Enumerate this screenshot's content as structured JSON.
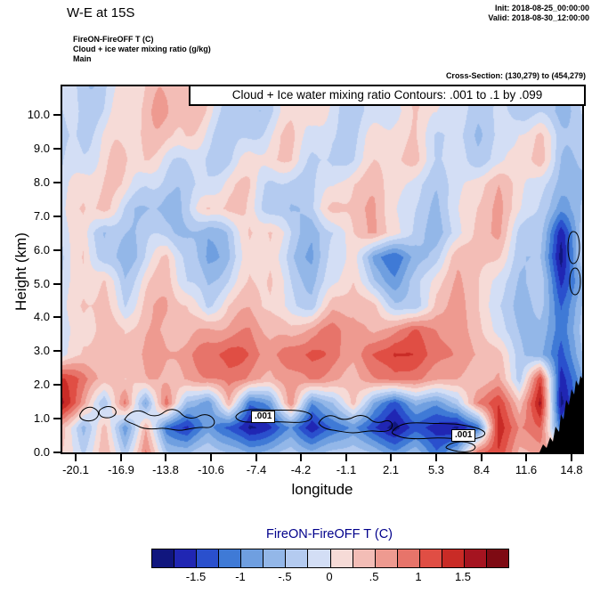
{
  "header": {
    "title": "W-E at 15S",
    "init_label": "Init: 2018-08-25_00:00:00",
    "valid_label": "Valid: 2018-08-30_12:00:00",
    "field_line1": "FireON-FireOFF T   (C)",
    "field_line2": "Cloud + ice water mixing ratio   (g/kg)",
    "field_line3": "Main",
    "cross_section": "Cross-Section: (130,279) to (454,279)"
  },
  "chart_data": {
    "type": "heatmap",
    "title": "W-E at 15S",
    "banner": "Cloud + Ice water mixing ratio Contours: .001 to .1 by .099",
    "xlabel": "longitude",
    "ylabel": "Height (km)",
    "x_ticks": [
      "-20.1",
      "-16.9",
      "-13.8",
      "-10.6",
      "-7.4",
      "-4.2",
      "-1.1",
      "2.1",
      "5.3",
      "8.4",
      "11.6",
      "14.8"
    ],
    "y_ticks": [
      "0.0",
      "1.0",
      "2.0",
      "3.0",
      "4.0",
      "5.0",
      "6.0",
      "7.0",
      "8.0",
      "9.0",
      "10.0"
    ],
    "y_range_km": [
      0,
      10.85
    ],
    "x_range_lon": [
      -20.1,
      14.8
    ],
    "contour_labels": [
      ".001",
      ".001"
    ],
    "grid": {
      "cols_lon": [
        -20.1,
        -18.7,
        -17.3,
        -15.9,
        -14.5,
        -13.1,
        -11.7,
        -10.3,
        -8.9,
        -7.5,
        -6.1,
        -4.7,
        -3.3,
        -1.9,
        -0.5,
        0.9,
        2.3,
        3.7,
        5.1,
        6.5,
        7.9,
        9.3,
        10.7,
        12.1,
        13.5,
        14.8
      ],
      "rows_km": [
        10.8,
        10.1,
        9.4,
        8.6,
        7.9,
        7.2,
        6.5,
        5.8,
        5.0,
        4.3,
        3.6,
        2.9,
        2.2,
        1.4,
        0.7,
        0.0
      ],
      "values": [
        [
          -0.3,
          -0.4,
          -0.3,
          0.2,
          0.3,
          0.4,
          0.4,
          0.2,
          -0.2,
          -0.3,
          -0.2,
          0.2,
          0.3,
          -0.2,
          -0.3,
          -0.2,
          0.2,
          0.3,
          0.2,
          -0.2,
          -0.3,
          -0.4,
          -0.3,
          -0.2,
          -0.4,
          -0.3
        ],
        [
          -0.4,
          -0.3,
          -0.2,
          0.3,
          0.4,
          0.5,
          0.3,
          0.1,
          -0.3,
          -0.4,
          -0.2,
          0.1,
          0.2,
          -0.3,
          -0.4,
          -0.2,
          0.1,
          0.2,
          0.1,
          -0.3,
          -0.4,
          -0.3,
          -0.2,
          -0.3,
          -0.5,
          -0.4
        ],
        [
          -0.5,
          -0.3,
          0.1,
          0.3,
          0.4,
          0.3,
          0.2,
          -0.2,
          -0.4,
          -0.3,
          0.1,
          0.3,
          -0.1,
          -0.4,
          -0.3,
          0.1,
          0.3,
          0.2,
          -0.2,
          -0.4,
          -0.5,
          -0.3,
          0.2,
          0.3,
          -0.3,
          -0.5
        ],
        [
          -0.4,
          -0.2,
          0.2,
          0.4,
          0.3,
          -0.2,
          -0.3,
          -0.4,
          -0.3,
          0.2,
          0.3,
          0.2,
          -0.3,
          -0.5,
          -0.2,
          0.2,
          0.4,
          0.3,
          -0.2,
          -0.3,
          -0.4,
          -0.2,
          0.3,
          0.4,
          -0.4,
          -0.6
        ],
        [
          -0.3,
          0.2,
          0.3,
          0.3,
          -0.2,
          -0.4,
          -0.5,
          -0.3,
          0.2,
          0.3,
          -0.2,
          -0.4,
          -0.3,
          -0.2,
          0.3,
          0.4,
          0.3,
          -0.2,
          -0.4,
          -0.3,
          0.2,
          0.4,
          0.3,
          -0.2,
          -0.5,
          -0.7
        ],
        [
          -0.2,
          0.3,
          0.4,
          -0.2,
          -0.5,
          -0.7,
          -0.4,
          0.2,
          0.4,
          0.2,
          -0.3,
          -0.6,
          -0.3,
          0.2,
          0.4,
          0.5,
          0.2,
          -0.3,
          -0.5,
          -0.2,
          0.3,
          0.5,
          0.2,
          -0.3,
          -0.8,
          -0.6
        ],
        [
          -0.3,
          0.2,
          -0.5,
          -0.4,
          -0.3,
          -0.4,
          -0.6,
          -0.8,
          -0.4,
          0.3,
          0.4,
          -0.3,
          -0.7,
          -0.4,
          0.3,
          0.5,
          0.3,
          -0.4,
          -0.6,
          -0.3,
          0.4,
          0.5,
          -0.2,
          -0.4,
          -1.6,
          -0.5
        ],
        [
          -0.4,
          0.3,
          -0.4,
          -0.6,
          -0.2,
          0.3,
          -0.4,
          -0.9,
          -0.5,
          0.2,
          0.3,
          -0.5,
          -0.8,
          -0.3,
          0.2,
          -0.9,
          -1.1,
          -0.7,
          -0.3,
          0.3,
          0.4,
          0.2,
          -0.3,
          -0.5,
          -1.8,
          -0.4
        ],
        [
          -0.3,
          0.2,
          0.3,
          -0.4,
          0.2,
          0.4,
          -0.3,
          -0.6,
          -0.2,
          0.3,
          0.4,
          -0.3,
          -0.6,
          -0.2,
          0.3,
          -0.5,
          -0.8,
          -0.4,
          0.2,
          0.4,
          0.3,
          -0.2,
          -0.4,
          -0.3,
          -1.5,
          -0.8
        ],
        [
          -0.2,
          0.3,
          0.4,
          -0.2,
          0.4,
          0.5,
          0.2,
          -0.4,
          0.3,
          0.5,
          0.3,
          -0.2,
          -0.4,
          0.3,
          0.5,
          0.3,
          -0.3,
          -0.5,
          0.4,
          0.5,
          0.3,
          -0.3,
          -0.5,
          -0.4,
          -1.2,
          -0.6
        ],
        [
          -0.3,
          0.2,
          0.4,
          0.3,
          0.5,
          0.4,
          0.3,
          0.5,
          0.6,
          0.8,
          0.5,
          0.3,
          0.6,
          0.8,
          0.6,
          0.4,
          0.8,
          1.0,
          0.8,
          0.5,
          0.4,
          -0.2,
          -0.4,
          -0.6,
          -1.1,
          -0.5
        ],
        [
          -0.2,
          0.3,
          0.5,
          0.4,
          0.6,
          0.5,
          0.6,
          0.9,
          1.2,
          1.0,
          0.7,
          0.9,
          1.1,
          0.8,
          0.6,
          1.0,
          1.4,
          1.2,
          0.9,
          0.6,
          0.5,
          0.3,
          -0.3,
          -0.7,
          -1.3,
          -0.6
        ],
        [
          1.2,
          0.9,
          0.4,
          0.3,
          0.5,
          0.4,
          0.5,
          0.7,
          0.9,
          0.7,
          0.5,
          0.6,
          0.8,
          0.5,
          0.4,
          0.7,
          1.0,
          0.8,
          0.6,
          0.4,
          0.3,
          0.5,
          -0.3,
          1.2,
          -1.6,
          -0.9
        ],
        [
          1.5,
          0.6,
          -0.5,
          0.9,
          -0.8,
          0.9,
          -0.6,
          -1.0,
          0.5,
          -1.2,
          -0.8,
          0.7,
          -1.0,
          -0.6,
          0.4,
          -0.8,
          -1.3,
          -0.7,
          -0.9,
          -0.5,
          0.8,
          1.2,
          0.4,
          1.6,
          -1.8,
          -1.0
        ],
        [
          0.3,
          -0.6,
          0.4,
          -0.9,
          0.5,
          -1.2,
          -1.6,
          -0.9,
          -1.3,
          -1.8,
          -1.5,
          -1.0,
          -1.7,
          -1.3,
          -0.9,
          -1.5,
          -1.8,
          -1.4,
          -1.6,
          -1.9,
          -1.2,
          1.4,
          0.8,
          1.0,
          -1.2,
          0.5
        ],
        [
          0.2,
          -0.3,
          0.5,
          -0.4,
          0.8,
          -0.5,
          -0.6,
          -0.3,
          -0.5,
          -0.8,
          -0.6,
          -0.4,
          -0.7,
          -0.5,
          -0.3,
          -0.6,
          -0.9,
          -0.6,
          -1.2,
          -0.8,
          0.9,
          1.2,
          0.5,
          0.6,
          0.4,
          0.2
        ]
      ]
    },
    "colorbar": {
      "title": "FireON-FireOFF T  (C)",
      "tick_labels": [
        "-1.5",
        "-1",
        "-.5",
        "0",
        ".5",
        "1",
        "1.5"
      ],
      "levels": [
        -2,
        -1.75,
        -1.5,
        -1.25,
        -1,
        -0.75,
        -0.5,
        -0.25,
        0,
        0.25,
        0.5,
        0.75,
        1,
        1.25,
        1.5,
        1.75,
        2
      ],
      "colors": [
        "#10167e",
        "#2026b3",
        "#2a50cd",
        "#3f7ad6",
        "#6f9fe0",
        "#93b7e8",
        "#b4cbf0",
        "#d3def5",
        "#f6dbd7",
        "#f3bdb6",
        "#ee9a90",
        "#e7746a",
        "#e04e44",
        "#c92b26",
        "#a51420",
        "#7e0a13"
      ]
    },
    "terrain_color": "#000000"
  }
}
